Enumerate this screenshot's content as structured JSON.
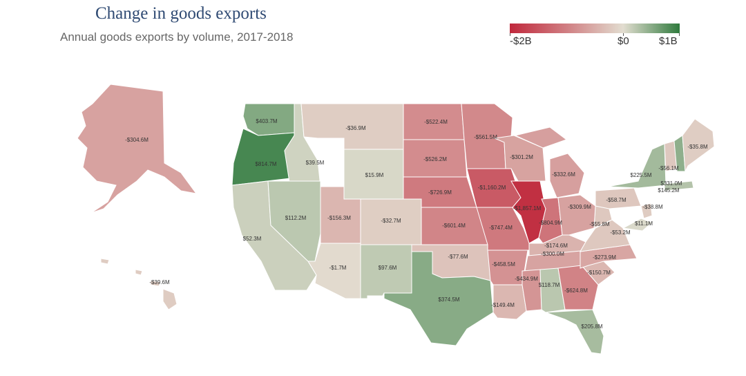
{
  "header": {
    "title": "Change in goods exports",
    "subtitle": "Annual goods exports by volume, 2017-2018"
  },
  "legend": {
    "min_label": "-$2B",
    "mid_label": "$0",
    "max_label": "$1B",
    "min_value": -2000,
    "max_value": 1000,
    "colors": {
      "negative": "#c0283c",
      "neutral": "#e2ddd0",
      "positive": "#2f7a3d"
    }
  },
  "map_data": {
    "unit": "$M",
    "states": [
      {
        "id": "AK",
        "label": "-$304.6M",
        "value": -304.6
      },
      {
        "id": "HI",
        "label": "-$39.6M",
        "value": -39.6
      },
      {
        "id": "WA",
        "label": "$403.7M",
        "value": 403.7
      },
      {
        "id": "OR",
        "label": "$814.7M",
        "value": 814.7
      },
      {
        "id": "CA",
        "label": "$52.3M",
        "value": 52.3
      },
      {
        "id": "ID",
        "label": "$39.5M",
        "value": 39.5
      },
      {
        "id": "NV",
        "label": "$112.2M",
        "value": 112.2
      },
      {
        "id": "MT",
        "label": "-$36.9M",
        "value": -36.9
      },
      {
        "id": "WY",
        "label": "$15.9M",
        "value": 15.9
      },
      {
        "id": "UT",
        "label": "-$156.3M",
        "value": -156.3
      },
      {
        "id": "AZ",
        "label": "-$1.7M",
        "value": -1.7
      },
      {
        "id": "CO",
        "label": "-$32.7M",
        "value": -32.7
      },
      {
        "id": "NM",
        "label": "$97.6M",
        "value": 97.6
      },
      {
        "id": "ND",
        "label": "-$522.4M",
        "value": -522.4
      },
      {
        "id": "SD",
        "label": "-$526.2M",
        "value": -526.2
      },
      {
        "id": "NE",
        "label": "-$726.9M",
        "value": -726.9
      },
      {
        "id": "KS",
        "label": "-$601.4M",
        "value": -601.4
      },
      {
        "id": "OK",
        "label": "-$77.6M",
        "value": -77.6
      },
      {
        "id": "TX",
        "label": "$374.5M",
        "value": 374.5
      },
      {
        "id": "MN",
        "label": "-$561.5M",
        "value": -561.5
      },
      {
        "id": "IA",
        "label": "-$1,160.2M",
        "value": -1160.2
      },
      {
        "id": "MO",
        "label": "-$747.4M",
        "value": -747.4
      },
      {
        "id": "AR",
        "label": "-$458.5M",
        "value": -458.5
      },
      {
        "id": "LA",
        "label": "-$149.4M",
        "value": -149.4
      },
      {
        "id": "WI",
        "label": "-$301.2M",
        "value": -301.2
      },
      {
        "id": "IL",
        "label": "-$1,857.1M",
        "value": -1857.1
      },
      {
        "id": "MI",
        "label": "-$332.6M",
        "value": -332.6
      },
      {
        "id": "IN",
        "label": "-$804.9M",
        "value": -804.9
      },
      {
        "id": "KY",
        "label": "-$174.6M",
        "value": -174.6
      },
      {
        "id": "TN",
        "label": "-$300.0M",
        "value": -300.0
      },
      {
        "id": "MS",
        "label": "-$434.9M",
        "value": -434.9
      },
      {
        "id": "AL",
        "label": "$118.7M",
        "value": 118.7
      },
      {
        "id": "GA",
        "label": "-$624.8M",
        "value": -624.8
      },
      {
        "id": "FL",
        "label": "$205.8M",
        "value": 205.8
      },
      {
        "id": "SC",
        "label": "-$150.7M",
        "value": -150.7
      },
      {
        "id": "NC",
        "label": "-$273.9M",
        "value": -273.9
      },
      {
        "id": "VA",
        "label": "-$53.2M",
        "value": -53.2
      },
      {
        "id": "WV",
        "label": "-$55.8M",
        "value": -55.8
      },
      {
        "id": "OH",
        "label": "-$309.9M",
        "value": -309.9
      },
      {
        "id": "PA",
        "label": "-$58.7M",
        "value": -58.7
      },
      {
        "id": "NY",
        "label": "$225.5M",
        "value": 225.5
      },
      {
        "id": "VT",
        "label": "-$56.1M",
        "value": -56.1
      },
      {
        "id": "NH",
        "label": "$331.0M",
        "value": 331.0
      },
      {
        "id": "ME",
        "label": "-$35.8M",
        "value": -35.8
      },
      {
        "id": "MA",
        "label": "$145.2M",
        "value": 145.2
      },
      {
        "id": "NJ",
        "label": "-$38.8M",
        "value": -38.8
      },
      {
        "id": "MD",
        "label": "$11.1M",
        "value": 11.1
      }
    ]
  }
}
